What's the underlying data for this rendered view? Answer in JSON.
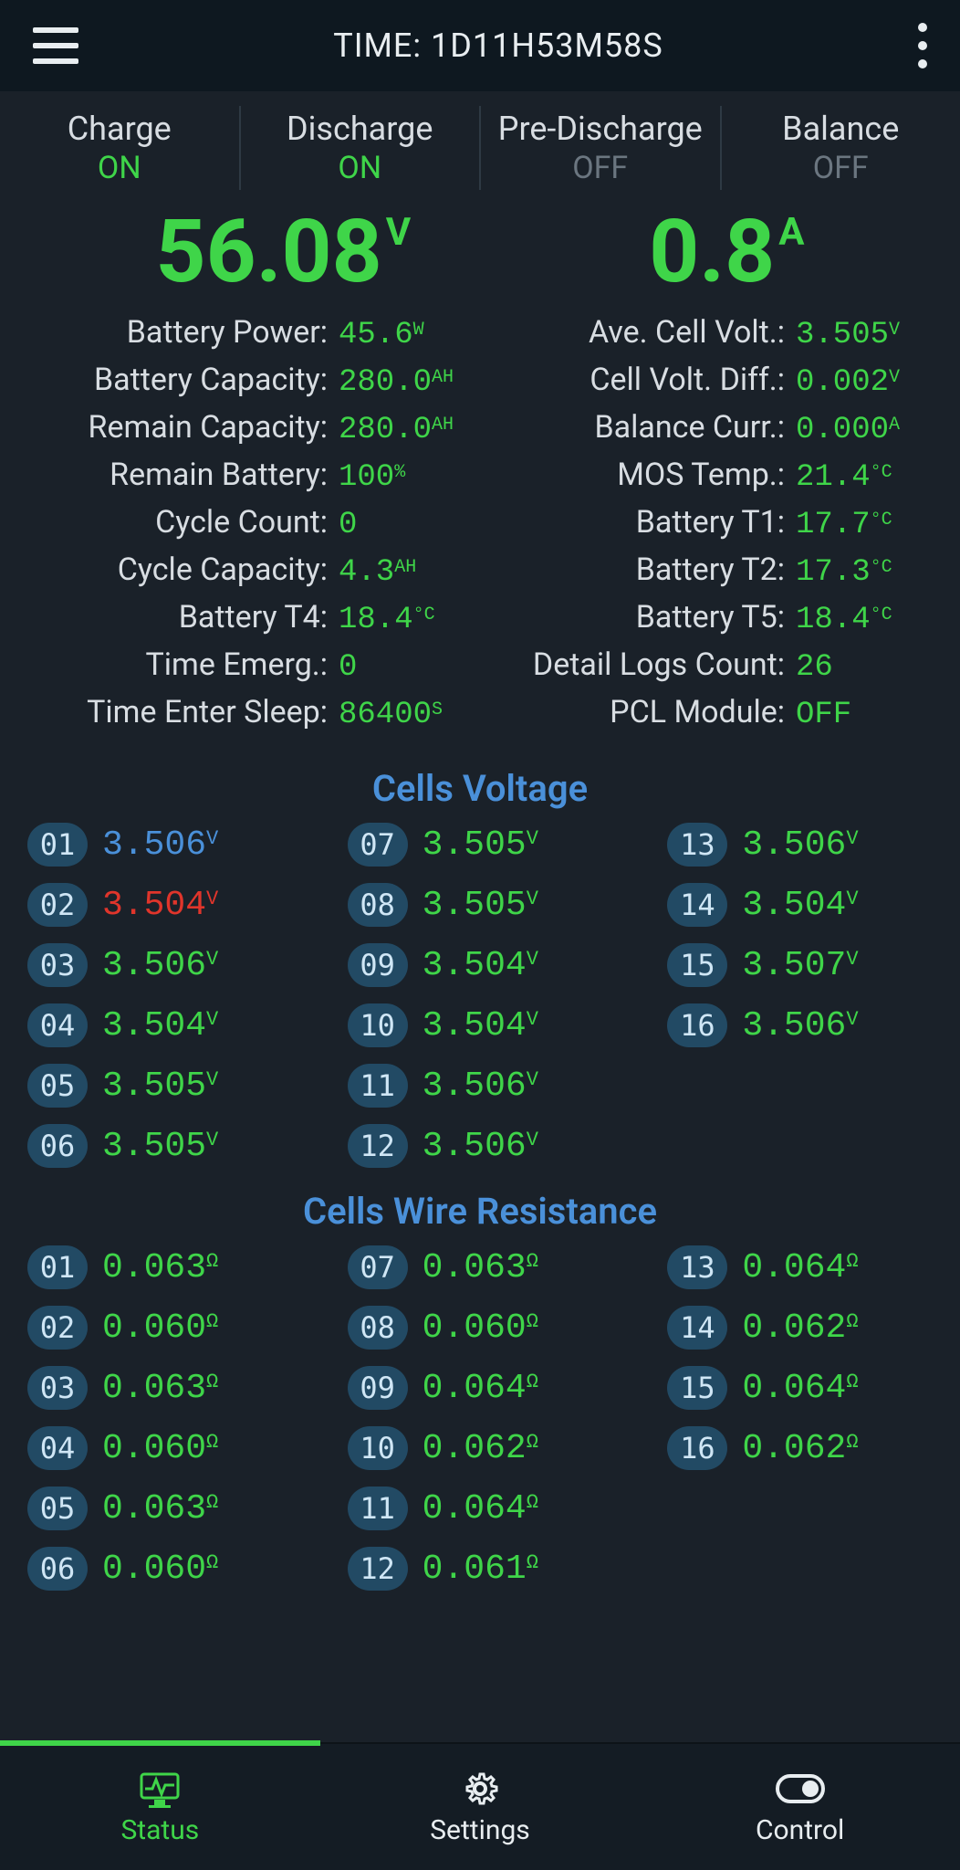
{
  "colors": {
    "bg": "#1a2129",
    "topbar_bg": "#0e1820",
    "text": "#d8dde2",
    "green": "#3fd549",
    "blue": "#4a90d9",
    "red": "#e0352b",
    "off_gray": "#6b7680",
    "pill_bg": "#224a64",
    "pill_text": "#cfe6f5"
  },
  "topbar": {
    "time_label": "TIME: 1D11H53M58S"
  },
  "modes": [
    {
      "name": "Charge",
      "state": "ON",
      "state_color": "green"
    },
    {
      "name": "Discharge",
      "state": "ON",
      "state_color": "green"
    },
    {
      "name": "Pre-Discharge",
      "state": "OFF",
      "state_color": "off"
    },
    {
      "name": "Balance",
      "state": "OFF",
      "state_color": "off"
    }
  ],
  "big": {
    "voltage": {
      "value": "56.08",
      "unit": "V"
    },
    "current": {
      "value": "0.8",
      "unit": "A"
    }
  },
  "stats_left": [
    {
      "label": "Battery Power:",
      "value": "45.6",
      "unit": "W",
      "color": "green"
    },
    {
      "label": "Battery Capacity:",
      "value": "280.0",
      "unit": "AH",
      "color": "green"
    },
    {
      "label": "Remain Capacity:",
      "value": "280.0",
      "unit": "AH",
      "color": "green"
    },
    {
      "label": "Remain Battery:",
      "value": "100",
      "unit": "%",
      "color": "green"
    },
    {
      "label": "Cycle Count:",
      "value": "0",
      "unit": "",
      "color": "green"
    },
    {
      "label": "Cycle Capacity:",
      "value": "4.3",
      "unit": "AH",
      "color": "green"
    },
    {
      "label": "Battery T4:",
      "value": "18.4",
      "unit": "°C",
      "color": "green"
    },
    {
      "label": "Time Emerg.:",
      "value": "0",
      "unit": "",
      "color": "green"
    },
    {
      "label": "Time Enter Sleep:",
      "value": "86400",
      "unit": "S",
      "color": "green"
    }
  ],
  "stats_right": [
    {
      "label": "Ave. Cell Volt.:",
      "value": "3.505",
      "unit": "V",
      "color": "green"
    },
    {
      "label": "Cell Volt. Diff.:",
      "value": "0.002",
      "unit": "V",
      "color": "green"
    },
    {
      "label": "Balance Curr.:",
      "value": "0.000",
      "unit": "A",
      "color": "green"
    },
    {
      "label": "MOS Temp.:",
      "value": "21.4",
      "unit": "°C",
      "color": "green"
    },
    {
      "label": "Battery T1:",
      "value": "17.7",
      "unit": "°C",
      "color": "green"
    },
    {
      "label": "Battery T2:",
      "value": "17.3",
      "unit": "°C",
      "color": "green"
    },
    {
      "label": "Battery T5:",
      "value": "18.4",
      "unit": "°C",
      "color": "green"
    },
    {
      "label": "Detail Logs Count:",
      "value": "26",
      "unit": "",
      "color": "green"
    },
    {
      "label": "PCL Module:",
      "value": "OFF",
      "unit": "",
      "color": "green"
    }
  ],
  "sections": {
    "voltage_title": "Cells Voltage",
    "resistance_title": "Cells Wire Resistance"
  },
  "cells_voltage": [
    {
      "num": "01",
      "value": "3.506",
      "unit": "V",
      "color": "blue"
    },
    {
      "num": "02",
      "value": "3.504",
      "unit": "V",
      "color": "red"
    },
    {
      "num": "03",
      "value": "3.506",
      "unit": "V",
      "color": "green"
    },
    {
      "num": "04",
      "value": "3.504",
      "unit": "V",
      "color": "green"
    },
    {
      "num": "05",
      "value": "3.505",
      "unit": "V",
      "color": "green"
    },
    {
      "num": "06",
      "value": "3.505",
      "unit": "V",
      "color": "green"
    },
    {
      "num": "07",
      "value": "3.505",
      "unit": "V",
      "color": "green"
    },
    {
      "num": "08",
      "value": "3.505",
      "unit": "V",
      "color": "green"
    },
    {
      "num": "09",
      "value": "3.504",
      "unit": "V",
      "color": "green"
    },
    {
      "num": "10",
      "value": "3.504",
      "unit": "V",
      "color": "green"
    },
    {
      "num": "11",
      "value": "3.506",
      "unit": "V",
      "color": "green"
    },
    {
      "num": "12",
      "value": "3.506",
      "unit": "V",
      "color": "green"
    },
    {
      "num": "13",
      "value": "3.506",
      "unit": "V",
      "color": "green"
    },
    {
      "num": "14",
      "value": "3.504",
      "unit": "V",
      "color": "green"
    },
    {
      "num": "15",
      "value": "3.507",
      "unit": "V",
      "color": "green"
    },
    {
      "num": "16",
      "value": "3.506",
      "unit": "V",
      "color": "green"
    }
  ],
  "cells_resistance": [
    {
      "num": "01",
      "value": "0.063",
      "unit": "Ω",
      "color": "green"
    },
    {
      "num": "02",
      "value": "0.060",
      "unit": "Ω",
      "color": "green"
    },
    {
      "num": "03",
      "value": "0.063",
      "unit": "Ω",
      "color": "green"
    },
    {
      "num": "04",
      "value": "0.060",
      "unit": "Ω",
      "color": "green"
    },
    {
      "num": "05",
      "value": "0.063",
      "unit": "Ω",
      "color": "green"
    },
    {
      "num": "06",
      "value": "0.060",
      "unit": "Ω",
      "color": "green"
    },
    {
      "num": "07",
      "value": "0.063",
      "unit": "Ω",
      "color": "green"
    },
    {
      "num": "08",
      "value": "0.060",
      "unit": "Ω",
      "color": "green"
    },
    {
      "num": "09",
      "value": "0.064",
      "unit": "Ω",
      "color": "green"
    },
    {
      "num": "10",
      "value": "0.062",
      "unit": "Ω",
      "color": "green"
    },
    {
      "num": "11",
      "value": "0.064",
      "unit": "Ω",
      "color": "green"
    },
    {
      "num": "12",
      "value": "0.061",
      "unit": "Ω",
      "color": "green"
    },
    {
      "num": "13",
      "value": "0.064",
      "unit": "Ω",
      "color": "green"
    },
    {
      "num": "14",
      "value": "0.062",
      "unit": "Ω",
      "color": "green"
    },
    {
      "num": "15",
      "value": "0.064",
      "unit": "Ω",
      "color": "green"
    },
    {
      "num": "16",
      "value": "0.062",
      "unit": "Ω",
      "color": "green"
    }
  ],
  "nav": {
    "status": "Status",
    "settings": "Settings",
    "control": "Control"
  }
}
